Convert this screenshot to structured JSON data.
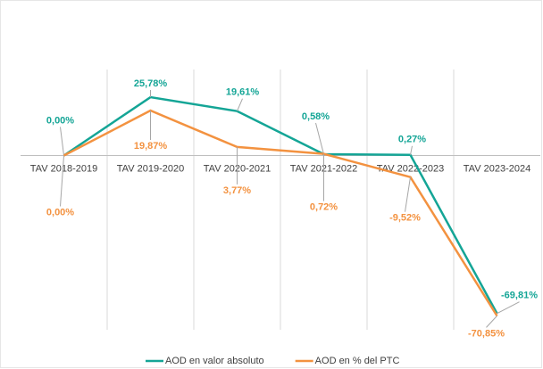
{
  "chart_data": {
    "type": "line",
    "categories": [
      "TAV 2018-2019",
      "TAV 2019-2020",
      "TAV 2020-2021",
      "TAV 2021-2022",
      "TAV 2022-2023",
      "TAV 2023-2024"
    ],
    "series": [
      {
        "name": "AOD en valor absoluto",
        "color": "#14a596",
        "values": [
          0,
          25.78,
          19.61,
          0.58,
          0.27,
          -69.81
        ],
        "value_labels": [
          "0,00%",
          "25,78%",
          "19,61%",
          "0,58%",
          "0,27%",
          "-69,81%"
        ]
      },
      {
        "name": "AOD en % del PTC",
        "color": "#f39240",
        "values": [
          0,
          19.87,
          3.77,
          0.72,
          -9.52,
          -70.85
        ],
        "value_labels": [
          "0,00%",
          "19,87%",
          "3,77%",
          "0,72%",
          "-9,52%",
          "-70,85%"
        ]
      }
    ],
    "ylim": [
      -77,
      38
    ],
    "legend": "bottom"
  }
}
